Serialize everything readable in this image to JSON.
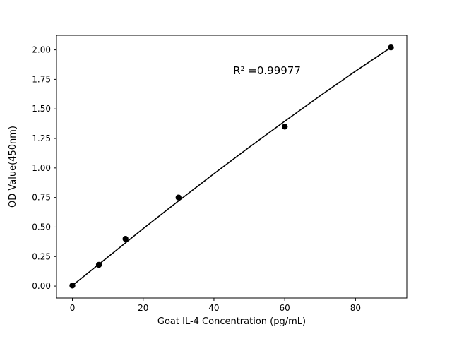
{
  "chart_data": {
    "type": "scatter",
    "title": "",
    "xlabel": "Goat IL-4 Concentration (pg/mL)",
    "ylabel": "OD Value(450nm)",
    "annotation": "R² =0.99977",
    "xlim": [
      -4.5,
      94.5
    ],
    "ylim": [
      -0.1011,
      2.1231
    ],
    "grid": false,
    "legend": "none",
    "xticks": {
      "values": [
        0,
        20,
        40,
        60,
        80
      ],
      "labels": [
        "0",
        "20",
        "40",
        "60",
        "80"
      ]
    },
    "yticks": {
      "values": [
        0.0,
        0.25,
        0.5,
        0.75,
        1.0,
        1.25,
        1.5,
        1.75,
        2.0
      ],
      "labels": [
        "0.00",
        "0.25",
        "0.50",
        "0.75",
        "1.00",
        "1.25",
        "1.50",
        "1.75",
        "2.00"
      ]
    },
    "series": [
      {
        "name": "standard-points",
        "type": "scatter",
        "x": [
          0,
          7.5,
          15,
          30,
          60,
          90
        ],
        "y": [
          0.005,
          0.18,
          0.4,
          0.75,
          1.35,
          2.02
        ]
      },
      {
        "name": "fit-line",
        "type": "line",
        "x": [
          0,
          10,
          20,
          30,
          40,
          50,
          60,
          70,
          80,
          90
        ],
        "y": [
          0.005,
          0.245,
          0.486,
          0.721,
          0.951,
          1.176,
          1.396,
          1.611,
          1.82,
          2.02
        ]
      }
    ],
    "colors": {
      "marker": "#000000",
      "line": "#000000",
      "axis": "#000000",
      "background": "#ffffff",
      "text": "#000000"
    }
  }
}
